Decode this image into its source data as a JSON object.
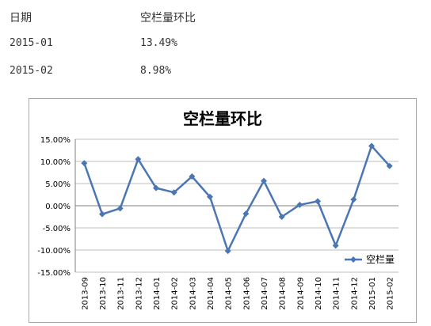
{
  "table": {
    "headers": [
      "日期",
      "空栏量环比"
    ],
    "rows": [
      {
        "date": "2015-01",
        "value": "13.49%"
      },
      {
        "date": "2015-02",
        "value": "8.98%"
      }
    ]
  },
  "colors": {
    "line": "#4a76b4",
    "grid": "#bdbdbd",
    "axis": "#7f7f7f"
  },
  "chart_data": {
    "type": "line",
    "title": "空栏量环比",
    "categories": [
      "2013-09",
      "2013-10",
      "2013-11",
      "2013-12",
      "2014-01",
      "2014-02",
      "2014-03",
      "2014-04",
      "2014-05",
      "2014-06",
      "2014-07",
      "2014-08",
      "2014-09",
      "2014-10",
      "2014-11",
      "2014-12",
      "2015-01",
      "2015-02"
    ],
    "series": [
      {
        "name": "空栏量",
        "values": [
          9.6,
          -1.9,
          -0.6,
          10.5,
          4.0,
          3.0,
          6.6,
          2.0,
          -10.2,
          -1.8,
          5.6,
          -2.5,
          0.2,
          1.0,
          -9.0,
          1.4,
          13.49,
          8.98
        ]
      }
    ],
    "yticks": [
      "15.00%",
      "10.00%",
      "5.00%",
      "0.00%",
      "-5.00%",
      "-10.00%",
      "-15.00%"
    ],
    "ylim": [
      -15,
      15
    ],
    "grid": true,
    "legend": "bottom-right"
  }
}
